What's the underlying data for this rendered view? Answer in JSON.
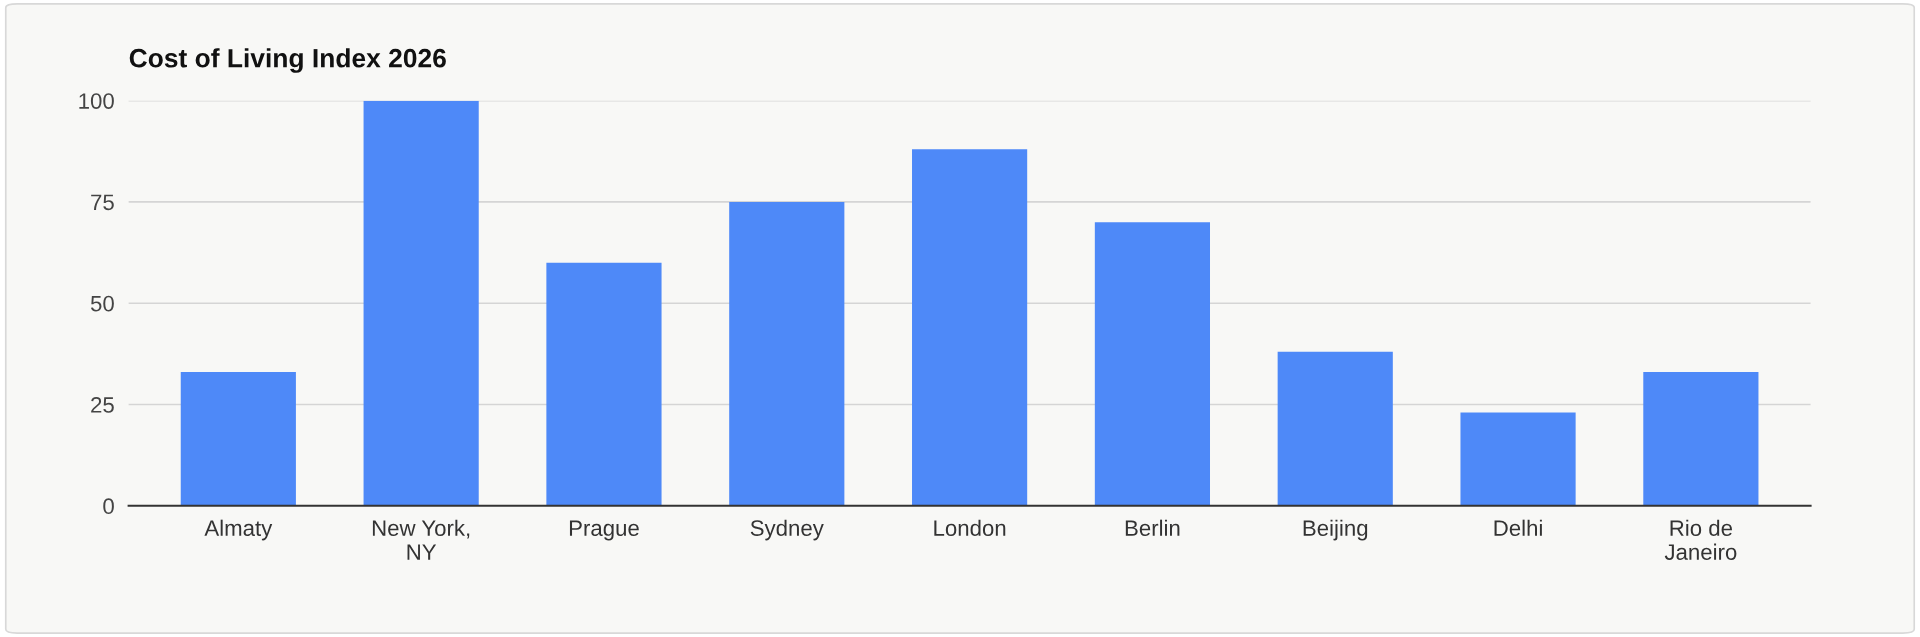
{
  "chart_data": {
    "type": "bar",
    "title": "Cost of Living Index 2026",
    "categories": [
      "Almaty",
      "New York, NY",
      "Prague",
      "Sydney",
      "London",
      "Berlin",
      "Beijing",
      "Delhi",
      "Rio de Janeiro"
    ],
    "values": [
      33,
      100,
      60,
      75,
      88,
      70,
      38,
      23,
      33
    ],
    "color": "#4e89f8",
    "ylim": [
      0,
      100
    ],
    "yticks": [
      0,
      25,
      50,
      75,
      100
    ],
    "grid": "y"
  }
}
